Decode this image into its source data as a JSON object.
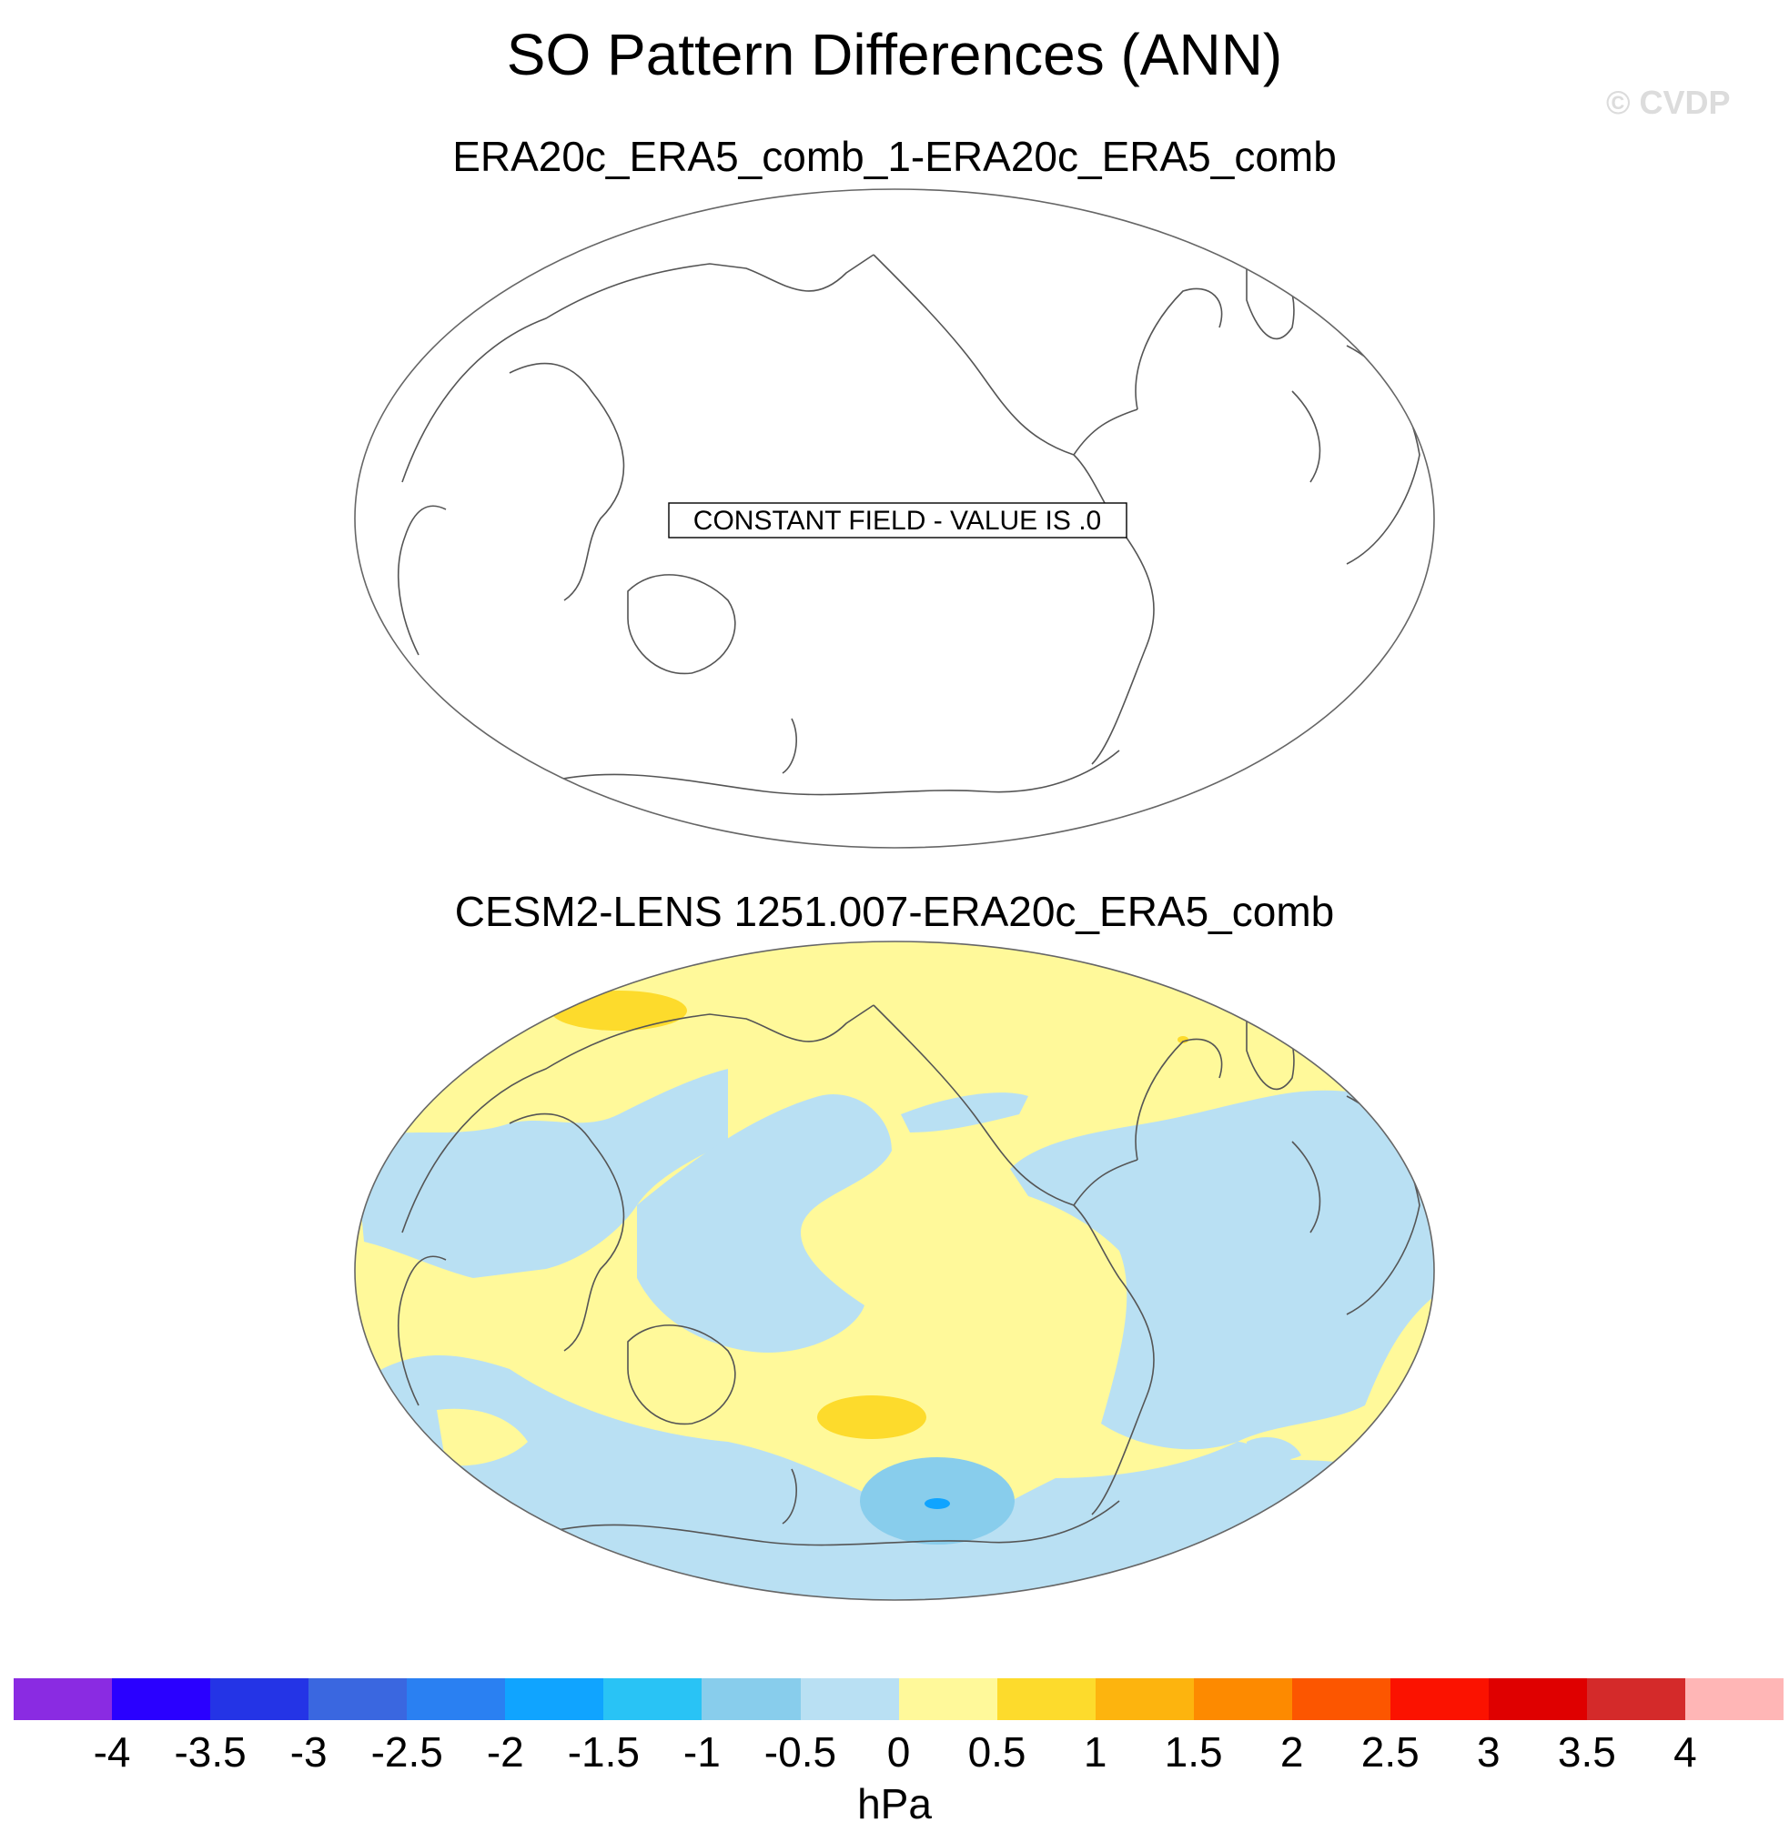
{
  "title": "SO Pattern Differences (ANN)",
  "credit": "© CVDP",
  "panels": [
    {
      "subtitle": "ERA20c_ERA5_comb_1-ERA20c_ERA5_comb",
      "note": "CONSTANT FIELD - VALUE IS .0"
    },
    {
      "subtitle": "CESM2-LENS 1251.007-ERA20c_ERA5_comb"
    }
  ],
  "colorbar": {
    "colors": [
      "#8a2be2",
      "#2a00ff",
      "#2434e6",
      "#3a67e0",
      "#2a80f2",
      "#10a4ff",
      "#29c3f5",
      "#88cdec",
      "#b9e0f3",
      "#fff99a",
      "#fddb2c",
      "#fdb40e",
      "#fd8a00",
      "#fc5600",
      "#fb1200",
      "#df0000",
      "#d42a2a",
      "#ffb6b6"
    ],
    "ticks": [
      "-4",
      "-3.5",
      "-3",
      "-2.5",
      "-2",
      "-1.5",
      "-1",
      "-0.5",
      "0",
      "0.5",
      "1",
      "1.5",
      "2",
      "2.5",
      "3",
      "3.5",
      "4"
    ],
    "units": "hPa"
  }
}
